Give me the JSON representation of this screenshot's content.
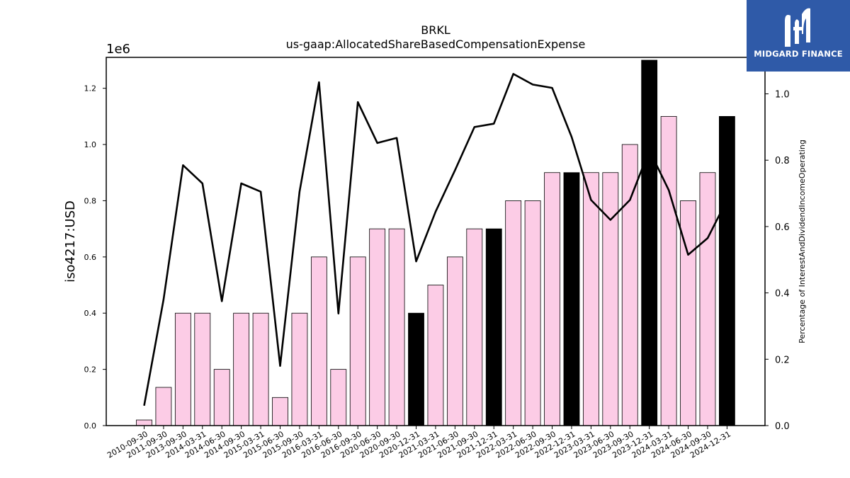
{
  "chart_data": {
    "type": "bar+line",
    "title": "BRKL",
    "subtitle": "us-gaap:AllocatedShareBasedCompensationExpense",
    "ylabel": "iso4217:USD",
    "y2label": "Percentage of InterestAndDividendIncomeOperating",
    "y_offset_label": "1e6",
    "y_scale": 1000000,
    "ylim": [
      0,
      1310000
    ],
    "y2lim": [
      0,
      1.11
    ],
    "y_ticks": [
      "0.0",
      "0.2",
      "0.4",
      "0.6",
      "0.8",
      "1.0",
      "1.2"
    ],
    "y_tick_values": [
      0,
      200000,
      400000,
      600000,
      800000,
      1000000,
      1200000
    ],
    "y2_ticks": [
      "0.0",
      "0.2",
      "0.4",
      "0.6",
      "0.8",
      "1.0"
    ],
    "y2_tick_values": [
      0,
      0.2,
      0.4,
      0.6,
      0.8,
      1.0
    ],
    "categories": [
      "2010-09-30",
      "2011-09-30",
      "2013-09-30",
      "2014-03-31",
      "2014-06-30",
      "2014-09-30",
      "2015-03-31",
      "2015-06-30",
      "2015-09-30",
      "2016-03-31",
      "2016-06-30",
      "2016-09-30",
      "2020-06-30",
      "2020-09-30",
      "2020-12-31",
      "2021-03-31",
      "2021-06-30",
      "2021-09-30",
      "2021-12-31",
      "2022-03-31",
      "2022-06-30",
      "2022-09-30",
      "2022-12-31",
      "2023-03-31",
      "2023-06-30",
      "2023-09-30",
      "2023-12-31",
      "2024-03-31",
      "2024-06-30",
      "2024-09-30",
      "2024-12-31"
    ],
    "series": [
      {
        "kind": "bar",
        "values": [
          20000,
          136000,
          400000,
          400000,
          200000,
          400000,
          400000,
          100000,
          400000,
          600000,
          200000,
          600000,
          700000,
          700000,
          400000,
          500000,
          600000,
          700000,
          700000,
          800000,
          800000,
          900000,
          900000,
          900000,
          900000,
          1000000,
          1300000,
          1100000,
          800000,
          900000,
          1100000
        ],
        "annual": [
          false,
          false,
          false,
          false,
          false,
          false,
          false,
          false,
          false,
          false,
          false,
          false,
          false,
          false,
          true,
          false,
          false,
          false,
          true,
          false,
          false,
          false,
          true,
          false,
          false,
          false,
          true,
          false,
          false,
          false,
          true
        ]
      },
      {
        "kind": "line",
        "values": [
          0.06,
          0.38,
          0.785,
          0.73,
          0.375,
          0.73,
          0.705,
          0.18,
          0.705,
          1.035,
          0.338,
          0.975,
          0.852,
          0.867,
          0.495,
          0.645,
          0.77,
          0.9,
          0.91,
          1.06,
          1.028,
          1.018,
          0.87,
          0.68,
          0.62,
          0.68,
          0.83,
          0.71,
          0.515,
          0.565,
          0.68
        ]
      }
    ],
    "colors": {
      "bar": "#fccce6",
      "bar_annual": "#000000",
      "line": "#000000",
      "axis": "#000000"
    }
  },
  "logo": {
    "text": "MIDGARD FINANCE",
    "background": "#2f5aa8",
    "icon": "midgard-m-icon"
  }
}
